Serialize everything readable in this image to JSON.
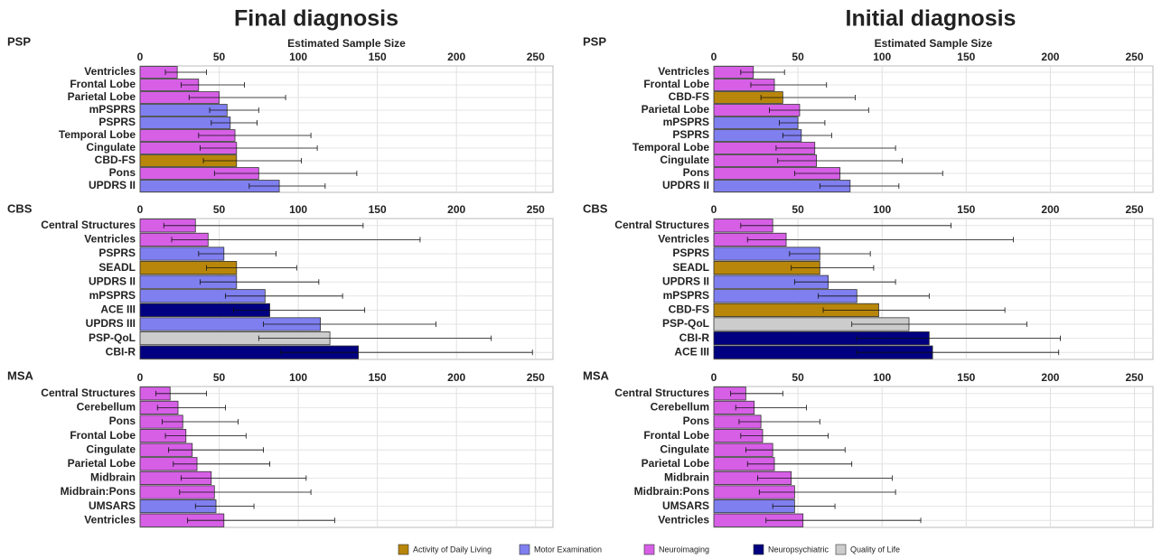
{
  "chart_data": [
    {
      "type": "bar",
      "orientation": "horizontal",
      "column_title": "Final diagnosis",
      "title": "PSP",
      "xlabel": "Estimated Sample Size",
      "categories": [
        "Ventricles",
        "Frontal Lobe",
        "Parietal Lobe",
        "mPSPRS",
        "PSPRS",
        "Temporal Lobe",
        "Cingulate",
        "CBD-FS",
        "Pons",
        "UPDRS II"
      ],
      "values": [
        23.5,
        37,
        50,
        55,
        57,
        60,
        61,
        61,
        75,
        88
      ],
      "lower": [
        16,
        26,
        31,
        44,
        45,
        37,
        38,
        40,
        47,
        69
      ],
      "upper": [
        42,
        66,
        92,
        75,
        74,
        108,
        112,
        102,
        137,
        117
      ],
      "colors": [
        "#d65fe6",
        "#d65fe6",
        "#d65fe6",
        "#7f7fef",
        "#7f7fef",
        "#d65fe6",
        "#d65fe6",
        "#b8860b",
        "#d65fe6",
        "#7f7fef"
      ],
      "xlim": [
        0,
        261
      ],
      "xticks": [
        0,
        50,
        100,
        150,
        200,
        250
      ],
      "grid": true
    },
    {
      "type": "bar",
      "orientation": "horizontal",
      "title": "CBS",
      "categories": [
        "Central Structures",
        "Ventricles",
        "PSPRS",
        "SEADL",
        "UPDRS II",
        "mPSPRS",
        "ACE III",
        "UPDRS III",
        "PSP-QoL",
        "CBI-R"
      ],
      "values": [
        35,
        43,
        53,
        61,
        61,
        79,
        82,
        114,
        120,
        138
      ],
      "lower": [
        15,
        20,
        37,
        42,
        38,
        54,
        59,
        78,
        75,
        89
      ],
      "upper": [
        141,
        177,
        86,
        99,
        113,
        128,
        142,
        187,
        222,
        248
      ],
      "colors": [
        "#d65fe6",
        "#d65fe6",
        "#7f7fef",
        "#b8860b",
        "#7f7fef",
        "#7f7fef",
        "#000080",
        "#7f7fef",
        "#cccccc",
        "#000080"
      ],
      "xlim": [
        0,
        261
      ],
      "xticks": [
        0,
        50,
        100,
        150,
        200,
        250
      ],
      "grid": true
    },
    {
      "type": "bar",
      "orientation": "horizontal",
      "title": "MSA",
      "categories": [
        "Central Structures",
        "Cerebellum",
        "Pons",
        "Frontal Lobe",
        "Cingulate",
        "Parietal Lobe",
        "Midbrain",
        "Midbrain:Pons",
        "UMSARS",
        "Ventricles"
      ],
      "values": [
        19,
        24,
        27,
        29,
        33,
        36,
        45,
        47,
        48,
        53
      ],
      "lower": [
        10,
        11,
        14,
        16,
        18,
        21,
        26,
        25,
        35,
        30
      ],
      "upper": [
        42,
        54,
        62,
        67,
        78,
        82,
        105,
        108,
        72,
        123
      ],
      "colors": [
        "#d65fe6",
        "#d65fe6",
        "#d65fe6",
        "#d65fe6",
        "#d65fe6",
        "#d65fe6",
        "#d65fe6",
        "#d65fe6",
        "#7f7fef",
        "#d65fe6"
      ],
      "xlim": [
        0,
        261
      ],
      "xticks": [
        0,
        50,
        100,
        150,
        200,
        250
      ],
      "grid": true
    },
    {
      "type": "bar",
      "orientation": "horizontal",
      "column_title": "Initial diagnosis",
      "title": "PSP",
      "xlabel": "Estimated Sample Size",
      "categories": [
        "Ventricles",
        "Frontal Lobe",
        "CBD-FS",
        "Parietal Lobe",
        "mPSPRS",
        "PSPRS",
        "Temporal Lobe",
        "Cingulate",
        "Pons",
        "UPDRS II"
      ],
      "values": [
        23.5,
        36,
        41,
        51,
        50,
        52,
        60,
        61,
        75,
        81
      ],
      "lower": [
        16,
        22,
        28,
        33,
        39,
        41,
        37,
        38,
        48,
        63
      ],
      "upper": [
        42,
        67,
        84,
        92,
        66,
        70,
        108,
        112,
        136,
        110
      ],
      "colors": [
        "#d65fe6",
        "#d65fe6",
        "#b8860b",
        "#d65fe6",
        "#7f7fef",
        "#7f7fef",
        "#d65fe6",
        "#d65fe6",
        "#d65fe6",
        "#7f7fef"
      ],
      "xlim": [
        0,
        261
      ],
      "xticks": [
        0,
        50,
        100,
        150,
        200,
        250
      ],
      "grid": true
    },
    {
      "type": "bar",
      "orientation": "horizontal",
      "title": "CBS",
      "categories": [
        "Central Structures",
        "Ventricles",
        "PSPRS",
        "SEADL",
        "UPDRS II",
        "mPSPRS",
        "CBD-FS",
        "PSP-QoL",
        "CBI-R",
        "ACE III"
      ],
      "values": [
        35,
        43,
        63,
        63,
        68,
        85,
        98,
        116,
        128,
        130
      ],
      "lower": [
        16,
        20,
        45,
        46,
        48,
        62,
        65,
        82,
        85,
        85
      ],
      "upper": [
        141,
        178,
        93,
        95,
        108,
        128,
        173,
        186,
        206,
        205
      ],
      "colors": [
        "#d65fe6",
        "#d65fe6",
        "#7f7fef",
        "#b8860b",
        "#7f7fef",
        "#7f7fef",
        "#b8860b",
        "#cccccc",
        "#000080",
        "#000080"
      ],
      "xlim": [
        0,
        261
      ],
      "xticks": [
        0,
        50,
        100,
        150,
        200,
        250
      ],
      "grid": true
    },
    {
      "type": "bar",
      "orientation": "horizontal",
      "title": "MSA",
      "categories": [
        "Central Structures",
        "Cerebellum",
        "Pons",
        "Frontal Lobe",
        "Cingulate",
        "Parietal Lobe",
        "Midbrain",
        "Midbrain:Pons",
        "UMSARS",
        "Ventricles"
      ],
      "values": [
        19,
        24,
        28,
        29,
        35,
        36,
        46,
        48,
        48,
        53
      ],
      "lower": [
        10,
        13,
        15,
        16,
        19,
        20,
        26,
        27,
        35,
        31
      ],
      "upper": [
        41,
        55,
        63,
        68,
        78,
        82,
        106,
        108,
        72,
        123
      ],
      "colors": [
        "#d65fe6",
        "#d65fe6",
        "#d65fe6",
        "#d65fe6",
        "#d65fe6",
        "#d65fe6",
        "#d65fe6",
        "#d65fe6",
        "#7f7fef",
        "#d65fe6"
      ],
      "xlim": [
        0,
        261
      ],
      "xticks": [
        0,
        50,
        100,
        150,
        200,
        250
      ],
      "grid": true
    }
  ],
  "legend": {
    "items": [
      {
        "name": "Activity of Daily Living",
        "color": "#b8860b"
      },
      {
        "name": "Motor Examination",
        "color": "#7f7fef"
      },
      {
        "name": "Neuroimaging",
        "color": "#d65fe6"
      },
      {
        "name": "Neuropsychiatric",
        "color": "#000080"
      },
      {
        "name": "Quality of Life",
        "color": "#cccccc"
      }
    ]
  }
}
